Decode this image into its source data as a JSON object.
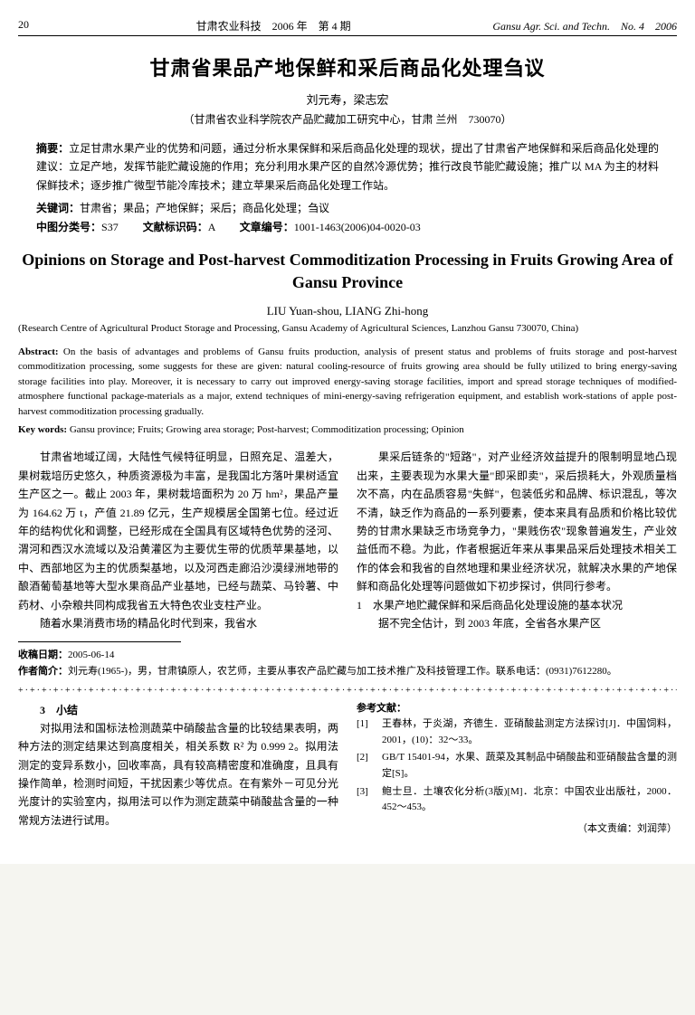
{
  "header": {
    "page_num": "20",
    "journal_cn": "甘肃农业科技　2006 年　第 4 期",
    "journal_en": "Gansu Agr. Sci. and Techn.　No. 4　2006"
  },
  "cn": {
    "title": "甘肃省果品产地保鲜和采后商品化处理刍议",
    "authors": "刘元寿，梁志宏",
    "affil": "（甘肃省农业科学院农产品贮藏加工研究中心，甘肃 兰州　730070）",
    "abstract_label": "摘要：",
    "abstract": "立足甘肃水果产业的优势和问题，通过分析水果保鲜和采后商品化处理的现状，提出了甘肃省产地保鲜和采后商品化处理的建议：立足产地，发挥节能贮藏设施的作用；充分利用水果产区的自然冷源优势；推行改良节能贮藏设施；推广以 MA 为主的材料保鲜技术；逐步推广微型节能冷库技术；建立苹果采后商品化处理工作站。",
    "keywords_label": "关键词：",
    "keywords": "甘肃省；果品；产地保鲜；采后；商品化处理；刍议",
    "class_label": "中图分类号：",
    "class_num": "S37",
    "doc_code_label": "文献标识码：",
    "doc_code": "A",
    "article_id_label": "文章编号：",
    "article_id": "1001-1463(2006)04-0020-03"
  },
  "en": {
    "title": "Opinions on Storage and Post-harvest Commoditization Processing in Fruits Growing Area of Gansu Province",
    "authors": "LIU Yuan-shou, LIANG Zhi-hong",
    "affil": "(Research Centre of Agricultural Product Storage and Processing, Gansu Academy of Agricultural Sciences, Lanzhou Gansu 730070, China)",
    "abstract_label": "Abstract:",
    "abstract": " On the basis of advantages and problems of Gansu fruits production, analysis of present status and problems of fruits storage and post-harvest commoditization processing, some suggests for these are given: natural cooling-resource of fruits growing area should be fully utilized to bring energy-saving storage facilities into play. Moreover, it is necessary to carry out improved energy-saving storage facilities, import and spread storage techniques of modified-atmosphere functional package-materials as a major, extend techniques of mini-energy-saving refrigeration equipment, and establish work-stations of apple post-harvest commoditization processing gradually.",
    "keywords_label": "Key words:",
    "keywords": " Gansu province; Fruits; Growing area storage; Post-harvest; Commoditization processing; Opinion"
  },
  "body": {
    "left_p1": "甘肃省地域辽阔，大陆性气候特征明显，日照充足、温差大，果树栽培历史悠久，种质资源极为丰富，是我国北方落叶果树适宜生产区之一。截止 2003 年，果树栽培面积为 20 万 hm²，果品产量为 164.62 万 t，产值 21.89 亿元，生产规模居全国第七位。经过近年的结构优化和调整，已经形成在全国具有区域特色优势的泾河、渭河和西汉水流域以及沿黄灌区为主要优生带的优质苹果基地，以中、西部地区为主的优质梨基地，以及河西走廊沿沙漠绿洲地带的酿酒葡萄基地等大型水果商品产业基地，已经与蔬菜、马铃薯、中药材、小杂粮共同构成我省五大特色农业支柱产业。",
    "left_p2": "随着水果消费市场的精品化时代到来，我省水",
    "right_p1": "果采后链条的\"短路\"，对产业经济效益提升的限制明显地凸现出来，主要表现为水果大量\"即采即卖\"，采后损耗大，外观质量档次不高，内在品质容易\"失鲜\"，包装低劣和品牌、标识混乱，等次不清，缺乏作为商品的一系列要素，使本来具有品质和价格比较优势的甘肃水果缺乏市场竞争力，\"果贱伤农\"现象普遍发生，产业效益低而不稳。为此，作者根据近年来从事果品采后处理技术相关工作的体会和我省的自然地理和果业经济状况，就解决水果的产地保鲜和商品化处理等问题做如下初步探讨，供同行参考。",
    "right_head": "1　水果产地贮藏保鲜和采后商品化处理设施的基本状况",
    "right_p2": "据不完全估计，到 2003 年底，全省各水果产区"
  },
  "footnote": {
    "recv_label": "收稿日期：",
    "recv": "2005-06-14",
    "bio_label": "作者简介：",
    "bio": "刘元寿(1965-)，男，甘肃镇原人，农艺师，主要从事农产品贮藏与加工技术推广及科技管理工作。联系电话：(0931)7612280。"
  },
  "lower": {
    "head3": "3　小结",
    "p1": "对拟用法和国标法检测蔬菜中硝酸盐含量的比较结果表明，两种方法的测定结果达到高度相关，相关系数 R² 为 0.999 2。拟用法测定的变异系数小，回收率高，具有较高精密度和准确度，且具有操作简单，检测时间短，干扰因素少等优点。在有紫外－可见分光光度计的实验室内，拟用法可以作为测定蔬菜中硝酸盐含量的一种常规方法进行试用。",
    "refs_head": "参考文献：",
    "refs": [
      {
        "num": "[1]",
        "txt": "王春林，于炎湖，齐德生．亚硝酸盐测定方法探讨[J]．中国饲料，2001，(10)：32～33。"
      },
      {
        "num": "[2]",
        "txt": "GB/T 15401-94，水果、蔬菜及其制品中硝酸盐和亚硝酸盐含量的测定[S]。"
      },
      {
        "num": "[3]",
        "txt": "鲍士旦．土壤农化分析(3版)[M]．北京：中国农业出版社，2000．452～453。"
      }
    ],
    "editor": "（本文责编：刘润萍）"
  }
}
